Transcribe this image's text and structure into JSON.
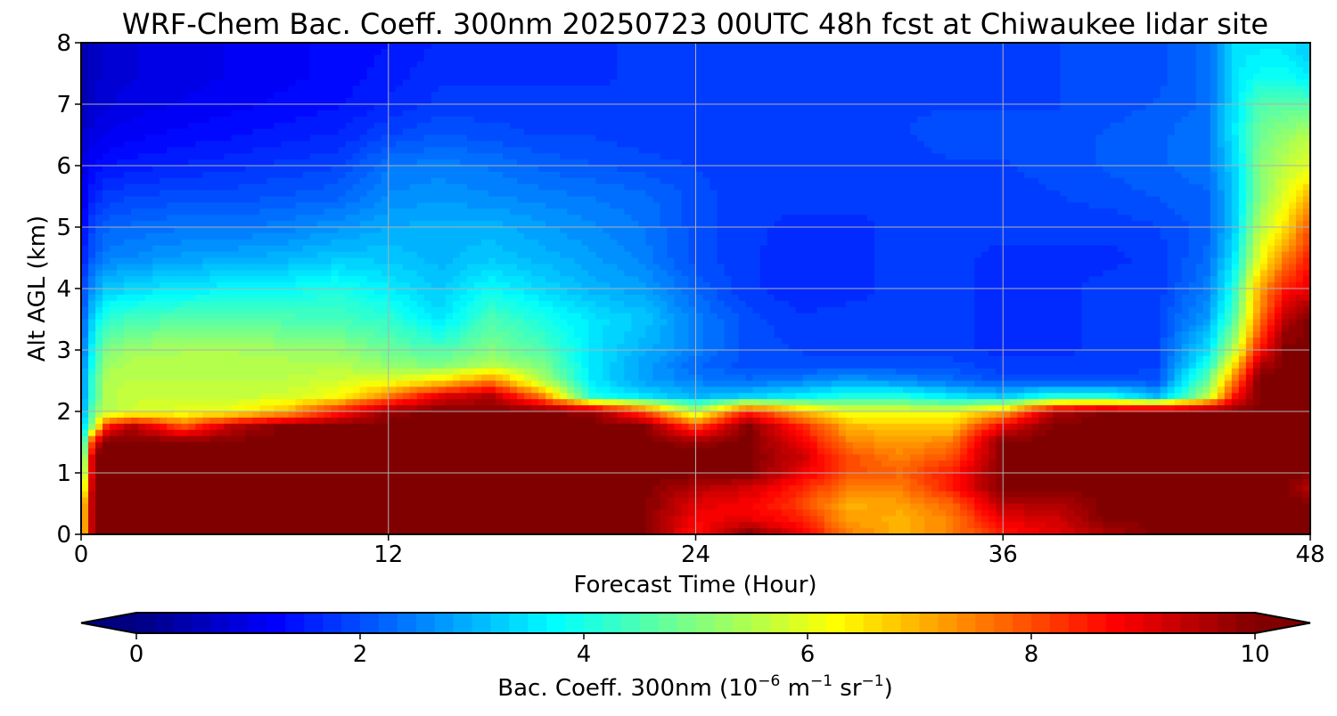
{
  "chart_data": {
    "type": "heatmap",
    "title": "WRF-Chem Bac. Coeff. 300nm  20250723 00UTC 48h fcst at Chiwaukee lidar site",
    "xlabel": "Forecast Time (Hour)",
    "ylabel": "Alt AGL (km)",
    "xlim": [
      0,
      48
    ],
    "ylim": [
      0,
      8
    ],
    "xticks": [
      "0",
      "12",
      "24",
      "36",
      "48"
    ],
    "yticks": [
      "0",
      "1",
      "2",
      "3",
      "4",
      "5",
      "6",
      "7",
      "8"
    ],
    "grid": true,
    "colorbar": {
      "label_prefix": "Bac. Coeff. 300nm  (10",
      "label_exp1": "−6",
      "label_mid": " m",
      "label_exp2": "−1",
      "label_mid2": " sr",
      "label_exp3": "−1",
      "label_suffix": ")",
      "range": [
        0,
        10
      ],
      "ticks": [
        "0",
        "2",
        "4",
        "6",
        "8",
        "10"
      ],
      "colormap": "jet",
      "extend": "both"
    },
    "field": {
      "x": [
        0,
        0.5,
        1,
        2,
        4,
        6,
        8,
        10,
        12,
        14,
        16,
        18,
        20,
        22,
        24,
        26,
        28,
        30,
        32,
        34,
        36,
        38,
        40,
        42,
        44,
        45,
        46,
        47,
        48
      ],
      "y": [
        0,
        0.25,
        0.5,
        0.75,
        1.0,
        1.25,
        1.5,
        1.75,
        2.0,
        2.25,
        2.5,
        2.75,
        3.0,
        3.5,
        4.0,
        4.5,
        5.0,
        5.5,
        6.0,
        6.5,
        7.0,
        7.5,
        8.0
      ],
      "values": [
        [
          6,
          10,
          10,
          10,
          10,
          10,
          10,
          10,
          10,
          10,
          10,
          10,
          10,
          10,
          8.5,
          10,
          9,
          7.5,
          7,
          7.5,
          8.5,
          9,
          9.5,
          10,
          10,
          10,
          10,
          10,
          10
        ],
        [
          6,
          10,
          10,
          10,
          10,
          10,
          10,
          10,
          10,
          10,
          10,
          10,
          10,
          10,
          8.8,
          9,
          8.5,
          7.2,
          7,
          7.5,
          9,
          9.2,
          10,
          10,
          10,
          10,
          10,
          10,
          10
        ],
        [
          6,
          10,
          10,
          10,
          10,
          10,
          10,
          10,
          10,
          10,
          10,
          10,
          10,
          10,
          9,
          8.8,
          8.2,
          7,
          7.2,
          7.8,
          9.5,
          9.5,
          10,
          10,
          10,
          10,
          10,
          10,
          10
        ],
        [
          5,
          10,
          10,
          10,
          10,
          10,
          10,
          10,
          10,
          10,
          10,
          10,
          10,
          10,
          9.5,
          9.2,
          8.5,
          7.5,
          7.5,
          8.5,
          10,
          10,
          10,
          10,
          10,
          10,
          10,
          10,
          9.5
        ],
        [
          4,
          10,
          10,
          10,
          10,
          10,
          10,
          10,
          10,
          10,
          10,
          10,
          10,
          10,
          10,
          10,
          9,
          8,
          7.8,
          8.5,
          10,
          10,
          10,
          10,
          10,
          10,
          10,
          10,
          10
        ],
        [
          3.5,
          10,
          10,
          10,
          10,
          10,
          10,
          10,
          10,
          10,
          10,
          10,
          10,
          10,
          10,
          10,
          9.3,
          8,
          7.5,
          8,
          10,
          10,
          10,
          10,
          10,
          10,
          10,
          10,
          10
        ],
        [
          3,
          9,
          10,
          10,
          10,
          10,
          10,
          10,
          10,
          10,
          10,
          10,
          10,
          10,
          9.8,
          10,
          9,
          7.5,
          7.2,
          7.5,
          10,
          10,
          10,
          10,
          10,
          10,
          10,
          10,
          10
        ],
        [
          3,
          5.5,
          8.5,
          9.5,
          8,
          9.5,
          10,
          10,
          10,
          10,
          10,
          10,
          10,
          10,
          8,
          10,
          8.5,
          7,
          6.8,
          6.8,
          9,
          10,
          10,
          10,
          10,
          10,
          10,
          10,
          10
        ],
        [
          2.5,
          5,
          5.5,
          5.8,
          6,
          6.2,
          7,
          8.5,
          9.8,
          10,
          10,
          10,
          9.8,
          8,
          5.5,
          8.5,
          7,
          6,
          6,
          6,
          7,
          9.5,
          10,
          10,
          10,
          10,
          10,
          10,
          10
        ],
        [
          2.5,
          4.5,
          5.5,
          5.7,
          5.7,
          5.7,
          5.8,
          6.2,
          7.5,
          9,
          9.5,
          7.5,
          4,
          3.5,
          3,
          3.3,
          3.6,
          4,
          4,
          3.5,
          3.2,
          4,
          4,
          3,
          5.5,
          8.5,
          10,
          10,
          10
        ],
        [
          2.5,
          4.5,
          5.5,
          5.6,
          5.6,
          5.6,
          5.6,
          5.8,
          6,
          6.5,
          7.5,
          5.5,
          3.5,
          2.8,
          2.5,
          2.3,
          2.5,
          2.8,
          2.6,
          2.3,
          2,
          2,
          2,
          2,
          4.8,
          7.5,
          10,
          10,
          10
        ],
        [
          2.3,
          4.2,
          5.3,
          5.5,
          5.5,
          5.5,
          5.5,
          5.5,
          5.2,
          5,
          5.5,
          5,
          3.5,
          2.8,
          2.3,
          2,
          2,
          2,
          2,
          2,
          1.8,
          1.8,
          1.8,
          1.9,
          4,
          6.5,
          9.5,
          10,
          10
        ],
        [
          2.2,
          4,
          5,
          5.3,
          5.4,
          5.4,
          5.3,
          5.2,
          4.8,
          4.5,
          5,
          4.5,
          3.5,
          3,
          2.5,
          2,
          1.9,
          1.8,
          1.8,
          1.8,
          1.7,
          1.7,
          1.8,
          1.9,
          3.5,
          5.5,
          8.5,
          10,
          10
        ],
        [
          2,
          3.5,
          4.2,
          4.4,
          4.6,
          4.6,
          4.5,
          4.4,
          4.2,
          3.5,
          4.5,
          4,
          3.5,
          3.2,
          2.5,
          2,
          1.8,
          1.8,
          1.8,
          1.8,
          1.7,
          1.7,
          1.8,
          1.9,
          2.8,
          4.5,
          7.5,
          9.5,
          10
        ],
        [
          1.8,
          2.8,
          3.2,
          3.4,
          3.6,
          3.7,
          3.8,
          4,
          3.6,
          3.2,
          3.8,
          3.4,
          3,
          2.8,
          2.2,
          1.8,
          1.6,
          1.7,
          1.8,
          1.8,
          1.7,
          1.7,
          1.8,
          1.8,
          2.5,
          4,
          7,
          8.5,
          9
        ],
        [
          1.5,
          2.2,
          2.5,
          2.6,
          2.8,
          2.9,
          3,
          3.2,
          3.2,
          3,
          3.2,
          3,
          2.8,
          2.5,
          2,
          1.8,
          1.6,
          1.7,
          1.8,
          1.8,
          1.7,
          1.7,
          1.7,
          1.8,
          2.3,
          3.5,
          6,
          7.5,
          8.5
        ],
        [
          1.2,
          2,
          2.2,
          2.3,
          2.4,
          2.4,
          2.5,
          2.7,
          2.9,
          3,
          3,
          2.8,
          2.6,
          2.4,
          2,
          1.8,
          1.7,
          1.7,
          1.8,
          1.8,
          1.8,
          1.8,
          1.8,
          1.9,
          2.2,
          3.2,
          5.5,
          6.5,
          8
        ],
        [
          1,
          1.6,
          1.8,
          1.9,
          2,
          2,
          2.1,
          2.2,
          2.6,
          2.7,
          2.6,
          2.5,
          2.4,
          2.3,
          2,
          1.8,
          1.8,
          1.8,
          1.8,
          1.8,
          1.8,
          1.9,
          2,
          2.1,
          2.2,
          3.2,
          5,
          6,
          7
        ],
        [
          0.9,
          1.3,
          1.4,
          1.5,
          1.6,
          1.7,
          1.8,
          1.9,
          2.4,
          2.5,
          2.4,
          2.2,
          2.1,
          2,
          1.9,
          1.8,
          1.8,
          1.8,
          1.8,
          1.9,
          1.9,
          2,
          2.1,
          2.2,
          2.4,
          3.3,
          5,
          5.6,
          6
        ],
        [
          0.7,
          1,
          1.1,
          1.2,
          1.3,
          1.4,
          1.5,
          1.6,
          1.9,
          2.1,
          2,
          1.9,
          1.9,
          1.8,
          1.8,
          1.8,
          1.8,
          1.8,
          1.9,
          2,
          2,
          2,
          2.1,
          2.2,
          2.4,
          3.5,
          4.8,
          5.2,
          5.5
        ],
        [
          0.5,
          0.8,
          0.9,
          1,
          1.1,
          1.2,
          1.3,
          1.4,
          1.6,
          1.8,
          1.8,
          1.8,
          1.8,
          1.8,
          1.8,
          1.8,
          1.8,
          1.8,
          1.9,
          1.9,
          1.9,
          1.9,
          2,
          2.1,
          2.3,
          3.5,
          4.5,
          4.6,
          4.5
        ],
        [
          0.4,
          0.7,
          0.8,
          0.9,
          1,
          1.1,
          1.2,
          1.3,
          1.5,
          1.7,
          1.7,
          1.7,
          1.7,
          1.8,
          1.8,
          1.8,
          1.8,
          1.8,
          1.8,
          1.8,
          1.9,
          1.9,
          2,
          2,
          2.3,
          3.5,
          3.8,
          3.8,
          3.5
        ],
        [
          0.4,
          0.7,
          0.8,
          0.9,
          1,
          1.1,
          1.2,
          1.3,
          1.4,
          1.6,
          1.6,
          1.6,
          1.7,
          1.8,
          1.8,
          1.8,
          1.8,
          1.8,
          1.8,
          1.8,
          1.9,
          1.9,
          2,
          2,
          2.3,
          3.5,
          3.5,
          3.5,
          3.2
        ]
      ]
    }
  }
}
